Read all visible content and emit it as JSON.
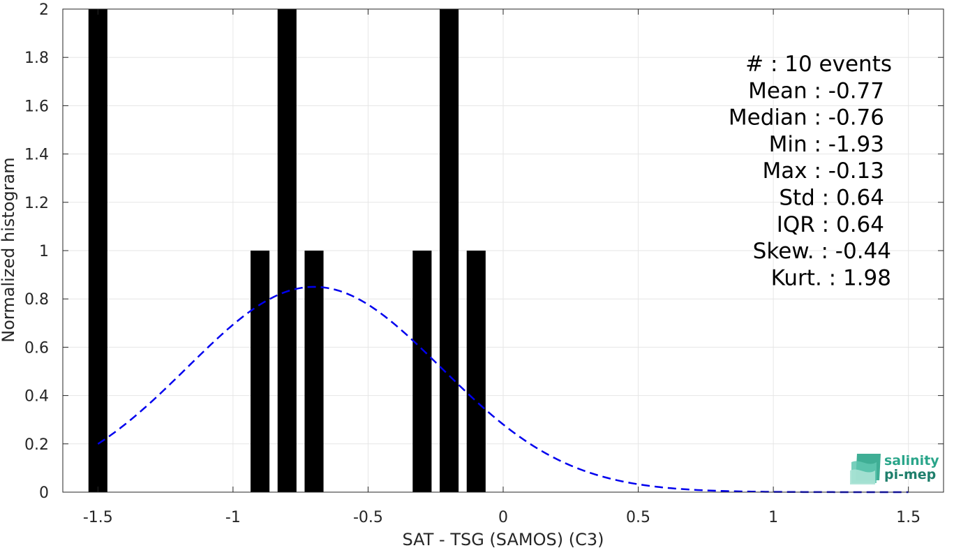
{
  "chart_data": {
    "type": "bar",
    "xlabel": "SAT - TSG (SAMOS) (C3)",
    "ylabel": "Normalized histogram",
    "xlim": [
      -1.63,
      1.63
    ],
    "ylim": [
      0,
      2
    ],
    "grid": true,
    "x_ticks": [
      -1.5,
      -1,
      -0.5,
      0,
      0.5,
      1,
      1.5
    ],
    "x_tick_labels": [
      "-1.5",
      "-1",
      "-0.5",
      "0",
      "0.5",
      "1",
      "1.5"
    ],
    "y_ticks": [
      0,
      0.2,
      0.4,
      0.6,
      0.8,
      1,
      1.2,
      1.4,
      1.6,
      1.8,
      2
    ],
    "y_tick_labels": [
      "0",
      "0.2",
      "0.4",
      "0.6",
      "0.8",
      "1",
      "1.2",
      "1.4",
      "1.6",
      "1.8",
      "2"
    ],
    "bin_width": 0.1,
    "bar_color": "#000000",
    "bars": [
      {
        "x": -1.5,
        "value": 2
      },
      {
        "x": -0.9,
        "value": 1
      },
      {
        "x": -0.8,
        "value": 2
      },
      {
        "x": -0.7,
        "value": 1
      },
      {
        "x": -0.3,
        "value": 1
      },
      {
        "x": -0.2,
        "value": 2
      },
      {
        "x": -0.1,
        "value": 1
      }
    ],
    "fit": {
      "type": "gaussian",
      "style": "dashed",
      "color": "#0000ee",
      "mean": -0.7,
      "peak": 0.85,
      "sigma": 0.47,
      "x_range": [
        -1.5,
        1.5
      ]
    },
    "stats": [
      "#  : 10 events",
      "Mean : -0.77",
      "Median : -0.76",
      "Min : -1.93",
      "Max : -0.13",
      "Std : 0.64",
      "IQR : 0.64",
      "Skew. : -0.44",
      "Kurt. : 1.98"
    ]
  },
  "logo": {
    "line1": "salinity",
    "line2": "pi-mep"
  }
}
